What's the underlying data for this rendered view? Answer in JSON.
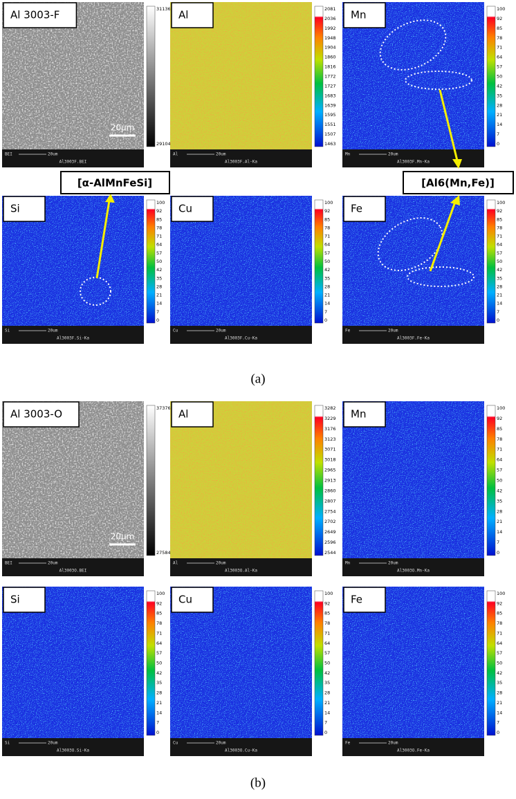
{
  "figure": {
    "parts": [
      {
        "caption": "(a)",
        "panels": [
          {
            "label": "Al 3003-F",
            "scale_ticks": [
              31136,
              29104
            ],
            "scale_bar": "20μm",
            "footer": {
              "signal": "BEI",
              "length": "20um",
              "file": "Al3003F.BEI"
            }
          },
          {
            "label": "Al",
            "scale_ticks": [
              2081,
              2036,
              1992,
              1948,
              1904,
              1860,
              1816,
              1772,
              1727,
              1683,
              1639,
              1595,
              1551,
              1507,
              1463
            ],
            "footer": {
              "signal": "Al",
              "length": "20um",
              "file": "Al3003F.Al-Ka"
            }
          },
          {
            "label": "Mn",
            "scale_ticks": [
              100,
              92,
              85,
              78,
              71,
              64,
              57,
              50,
              42,
              35,
              28,
              21,
              14,
              7,
              0
            ],
            "footer": {
              "signal": "Mn",
              "length": "20um",
              "file": "Al3003F.Mn-Ka"
            }
          },
          {
            "label": "Si",
            "scale_ticks": [
              100,
              92,
              85,
              78,
              71,
              64,
              57,
              50,
              42,
              35,
              28,
              21,
              14,
              7,
              0
            ],
            "footer": {
              "signal": "Si",
              "length": "20um",
              "file": "Al3003F.Si-Ka"
            }
          },
          {
            "label": "Cu",
            "scale_ticks": [
              100,
              92,
              85,
              78,
              71,
              64,
              57,
              50,
              42,
              35,
              28,
              21,
              14,
              7,
              0
            ],
            "footer": {
              "signal": "Cu",
              "length": "20um",
              "file": "Al3003F.Cu-Ka"
            }
          },
          {
            "label": "Fe",
            "scale_ticks": [
              100,
              92,
              85,
              78,
              71,
              64,
              57,
              50,
              42,
              35,
              28,
              21,
              14,
              7,
              0
            ],
            "footer": {
              "signal": "Fe",
              "length": "20um",
              "file": "Al3003F.Fe-Ka"
            }
          }
        ]
      },
      {
        "caption": "(b)",
        "panels": [
          {
            "label": "Al 3003-O",
            "scale_ticks": [
              37376,
              27584
            ],
            "scale_bar": "20μm",
            "footer": {
              "signal": "BEI",
              "length": "20um",
              "file": "Al3003O.BEI"
            }
          },
          {
            "label": "Al",
            "scale_ticks": [
              3282,
              3229,
              3176,
              3123,
              3071,
              3018,
              2965,
              2913,
              2860,
              2807,
              2754,
              2702,
              2649,
              2596,
              2544
            ],
            "footer": {
              "signal": "Al",
              "length": "20um",
              "file": "Al3003O.Al-Ka"
            }
          },
          {
            "label": "Mn",
            "scale_ticks": [
              100,
              92,
              85,
              78,
              71,
              64,
              57,
              50,
              42,
              35,
              28,
              21,
              14,
              7,
              0
            ],
            "footer": {
              "signal": "Mn",
              "length": "20um",
              "file": "Al3003O.Mn-Ka"
            }
          },
          {
            "label": "Si",
            "scale_ticks": [
              100,
              92,
              85,
              78,
              71,
              64,
              57,
              50,
              42,
              35,
              28,
              21,
              14,
              7,
              0
            ],
            "footer": {
              "signal": "Si",
              "length": "20um",
              "file": "Al3003O.Si-Ka"
            }
          },
          {
            "label": "Cu",
            "scale_ticks": [
              100,
              92,
              85,
              78,
              71,
              64,
              57,
              50,
              42,
              35,
              28,
              21,
              14,
              7,
              0
            ],
            "footer": {
              "signal": "Cu",
              "length": "20um",
              "file": "Al3003O.Cu-Ka"
            }
          },
          {
            "label": "Fe",
            "scale_ticks": [
              100,
              92,
              85,
              78,
              71,
              64,
              57,
              50,
              42,
              35,
              28,
              21,
              14,
              7,
              0
            ],
            "footer": {
              "signal": "Fe",
              "length": "20um",
              "file": "Al3003O.Fe-Ka"
            }
          }
        ]
      }
    ],
    "annotations": [
      {
        "text": "[α-AlMnFeSi]"
      },
      {
        "text": "[Al6(Mn,Fe)]"
      }
    ]
  }
}
